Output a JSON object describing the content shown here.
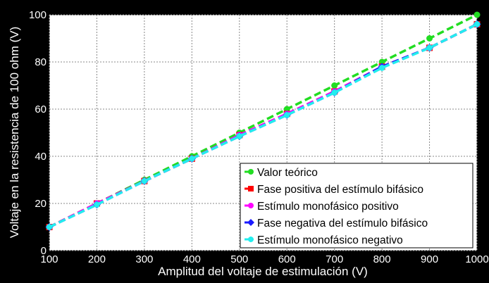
{
  "chart_data": {
    "type": "line",
    "title": "",
    "xlabel": "Amplitud del voltaje de estimulación (V)",
    "ylabel": "Voltaje en la resistencia de 100 ohm (V)",
    "xlim": [
      100,
      1000
    ],
    "ylim": [
      0,
      100
    ],
    "xticks": [
      100,
      200,
      300,
      400,
      500,
      600,
      700,
      800,
      900,
      1000
    ],
    "yticks": [
      0,
      20,
      40,
      60,
      80,
      100
    ],
    "grid": true,
    "legend_position": "bottom-right",
    "x": [
      100,
      200,
      300,
      400,
      500,
      600,
      700,
      800,
      900,
      1000
    ],
    "series": [
      {
        "name": "Valor teórico",
        "color": "#22dd22",
        "marker": "circle",
        "values": [
          10,
          20,
          30,
          40,
          50,
          60,
          70,
          80,
          90,
          100
        ]
      },
      {
        "name": "Fase positiva del estímulo bifásico",
        "color": "#ff0000",
        "marker": "square",
        "values": [
          10,
          20,
          29.5,
          39,
          49,
          58,
          67.5,
          78,
          86,
          96
        ]
      },
      {
        "name": "Estímulo monofásico positivo",
        "color": "#ff00ff",
        "marker": "circle",
        "values": [
          10,
          20,
          29.5,
          39,
          49,
          58,
          67.5,
          78,
          86,
          96
        ]
      },
      {
        "name": "Fase negativa del estímulo bifásico",
        "color": "#1a1aff",
        "marker": "diamond",
        "values": [
          10,
          19.5,
          29.5,
          39,
          48.5,
          57.5,
          67,
          78,
          86,
          96
        ]
      },
      {
        "name": "Estímulo monofásico negativo",
        "color": "#22eeee",
        "marker": "star",
        "values": [
          10,
          19.5,
          29.5,
          39,
          48.5,
          57.5,
          67,
          77.5,
          86,
          96
        ]
      }
    ]
  }
}
